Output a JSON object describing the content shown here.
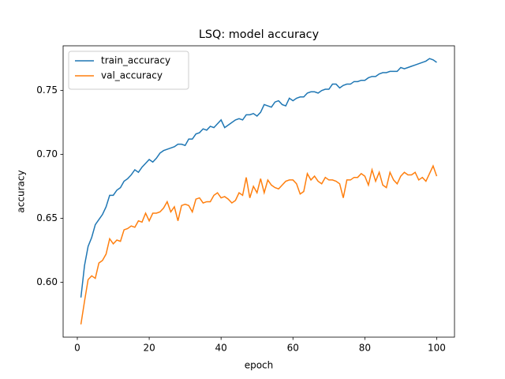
{
  "chart_data": {
    "type": "line",
    "title": "LSQ: model accuracy",
    "x_label": "epoch",
    "y_label": "accuracy",
    "x": [
      1,
      2,
      3,
      4,
      5,
      6,
      7,
      8,
      9,
      10,
      11,
      12,
      13,
      14,
      15,
      16,
      17,
      18,
      19,
      20,
      21,
      22,
      23,
      24,
      25,
      26,
      27,
      28,
      29,
      30,
      31,
      32,
      33,
      34,
      35,
      36,
      37,
      38,
      39,
      40,
      41,
      42,
      43,
      44,
      45,
      46,
      47,
      48,
      49,
      50,
      51,
      52,
      53,
      54,
      55,
      56,
      57,
      58,
      59,
      60,
      61,
      62,
      63,
      64,
      65,
      66,
      67,
      68,
      69,
      70,
      71,
      72,
      73,
      74,
      75,
      76,
      77,
      78,
      79,
      80,
      81,
      82,
      83,
      84,
      85,
      86,
      87,
      88,
      89,
      90,
      91,
      92,
      93,
      94,
      95,
      96,
      97,
      98,
      99,
      100
    ],
    "series": [
      {
        "name": "train_accuracy",
        "color": "#1f77b4",
        "values": [
          0.588,
          0.613,
          0.628,
          0.635,
          0.645,
          0.649,
          0.653,
          0.659,
          0.668,
          0.668,
          0.672,
          0.674,
          0.679,
          0.681,
          0.684,
          0.688,
          0.686,
          0.69,
          0.693,
          0.696,
          0.694,
          0.697,
          0.701,
          0.703,
          0.704,
          0.705,
          0.706,
          0.708,
          0.708,
          0.707,
          0.712,
          0.712,
          0.716,
          0.717,
          0.72,
          0.719,
          0.722,
          0.721,
          0.724,
          0.727,
          0.721,
          0.723,
          0.725,
          0.727,
          0.728,
          0.727,
          0.731,
          0.731,
          0.732,
          0.73,
          0.733,
          0.739,
          0.738,
          0.737,
          0.741,
          0.742,
          0.739,
          0.738,
          0.744,
          0.742,
          0.744,
          0.745,
          0.745,
          0.748,
          0.749,
          0.749,
          0.748,
          0.75,
          0.751,
          0.751,
          0.755,
          0.755,
          0.752,
          0.754,
          0.755,
          0.755,
          0.757,
          0.757,
          0.758,
          0.758,
          0.76,
          0.761,
          0.761,
          0.763,
          0.764,
          0.764,
          0.765,
          0.765,
          0.765,
          0.768,
          0.767,
          0.768,
          0.769,
          0.77,
          0.771,
          0.772,
          0.773,
          0.775,
          0.774,
          0.772
        ]
      },
      {
        "name": "val_accuracy",
        "color": "#ff7f0e",
        "values": [
          0.567,
          0.585,
          0.602,
          0.605,
          0.603,
          0.615,
          0.617,
          0.622,
          0.634,
          0.63,
          0.633,
          0.632,
          0.641,
          0.642,
          0.644,
          0.643,
          0.648,
          0.647,
          0.654,
          0.648,
          0.654,
          0.654,
          0.655,
          0.658,
          0.663,
          0.655,
          0.659,
          0.648,
          0.66,
          0.661,
          0.66,
          0.655,
          0.665,
          0.666,
          0.662,
          0.663,
          0.663,
          0.668,
          0.67,
          0.666,
          0.667,
          0.665,
          0.662,
          0.664,
          0.67,
          0.668,
          0.682,
          0.666,
          0.675,
          0.67,
          0.681,
          0.67,
          0.68,
          0.676,
          0.674,
          0.673,
          0.676,
          0.679,
          0.68,
          0.68,
          0.677,
          0.669,
          0.671,
          0.685,
          0.68,
          0.683,
          0.679,
          0.677,
          0.682,
          0.68,
          0.68,
          0.679,
          0.677,
          0.666,
          0.68,
          0.68,
          0.682,
          0.682,
          0.685,
          0.683,
          0.676,
          0.688,
          0.679,
          0.686,
          0.676,
          0.674,
          0.686,
          0.68,
          0.677,
          0.683,
          0.686,
          0.684,
          0.684,
          0.686,
          0.68,
          0.682,
          0.679,
          0.685,
          0.691,
          0.683
        ]
      }
    ],
    "xlim": [
      -3.95,
      104.95
    ],
    "ylim": [
      0.557,
      0.785
    ],
    "xticks": [
      0,
      20,
      40,
      60,
      80,
      100
    ],
    "yticks": [
      {
        "value": 0.6,
        "label": "0.60"
      },
      {
        "value": 0.65,
        "label": "0.65"
      },
      {
        "value": 0.7,
        "label": "0.70"
      },
      {
        "value": 0.75,
        "label": "0.75"
      }
    ],
    "legend": "upper left"
  }
}
